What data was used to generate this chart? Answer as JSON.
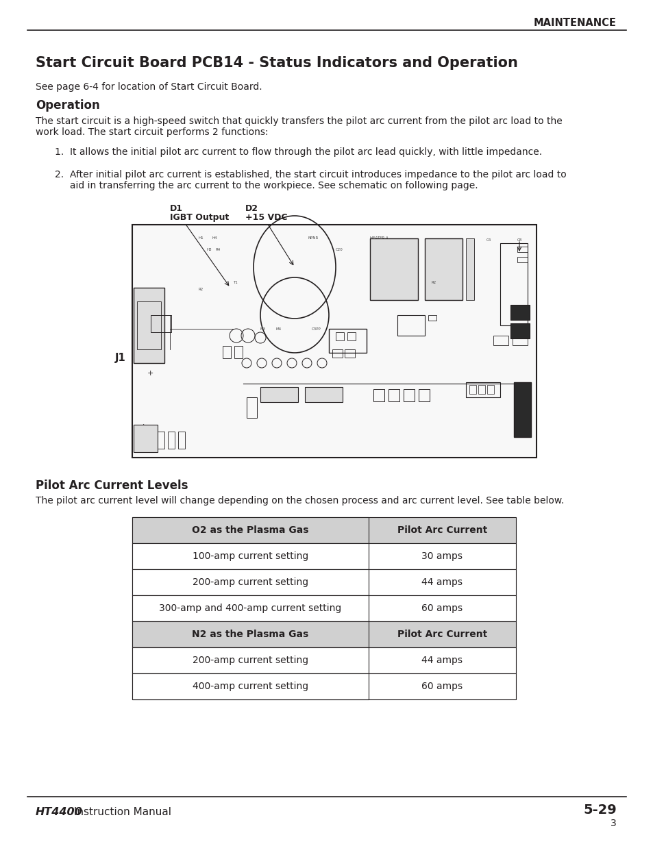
{
  "page_title": "MAINTENANCE",
  "section_title": "Start Circuit Board PCB14 - Status Indicators and Operation",
  "see_page_text": "See page 6-4 for location of Start Circuit Board.",
  "subsection_operation": "Operation",
  "operation_line1": "The start circuit is a high-speed switch that quickly transfers the pilot arc current from the pilot arc load to the",
  "operation_line2": "work load. The start circuit performs 2 functions:",
  "list_item1": "1.  It allows the initial pilot arc current to flow through the pilot arc lead quickly, with little impedance.",
  "list_item2a": "2.  After initial pilot arc current is established, the start circuit introduces impedance to the pilot arc load to",
  "list_item2b": "     aid in transferring the arc current to the workpiece. See schematic on following page.",
  "label_d1_line1": "D1",
  "label_d1_line2": "IGBT Output",
  "label_d2_line1": "D2",
  "label_d2_line2": "+15 VDC",
  "label_j1": "J1",
  "subsection_pilot": "Pilot Arc Current Levels",
  "pilot_para": "The pilot arc current level will change depending on the chosen process and arc current level. See table below.",
  "table_header1_col1": "O2 as the Plasma Gas",
  "table_header1_col2": "Pilot Arc Current",
  "table_rows_o2": [
    [
      "100-amp current setting",
      "30 amps"
    ],
    [
      "200-amp current setting",
      "44 amps"
    ],
    [
      "300-amp and 400-amp current setting",
      "60 amps"
    ]
  ],
  "table_header2_col1": "N2 as the Plasma Gas",
  "table_header2_col2": "Pilot Arc Current",
  "table_rows_n2": [
    [
      "200-amp current setting",
      "44 amps"
    ],
    [
      "400-amp current setting",
      "60 amps"
    ]
  ],
  "footer_left_bold": "HT4400",
  "footer_left_normal": " Instruction Manual",
  "footer_right": "5-29",
  "footer_page": "3",
  "bg_color": "#ffffff",
  "text_color": "#231f20",
  "header_bg": "#d0d0d0",
  "board_bg": "#f8f8f8",
  "dark_fill": "#2a2a2a",
  "mid_fill": "#888888",
  "light_fill": "#dddddd"
}
